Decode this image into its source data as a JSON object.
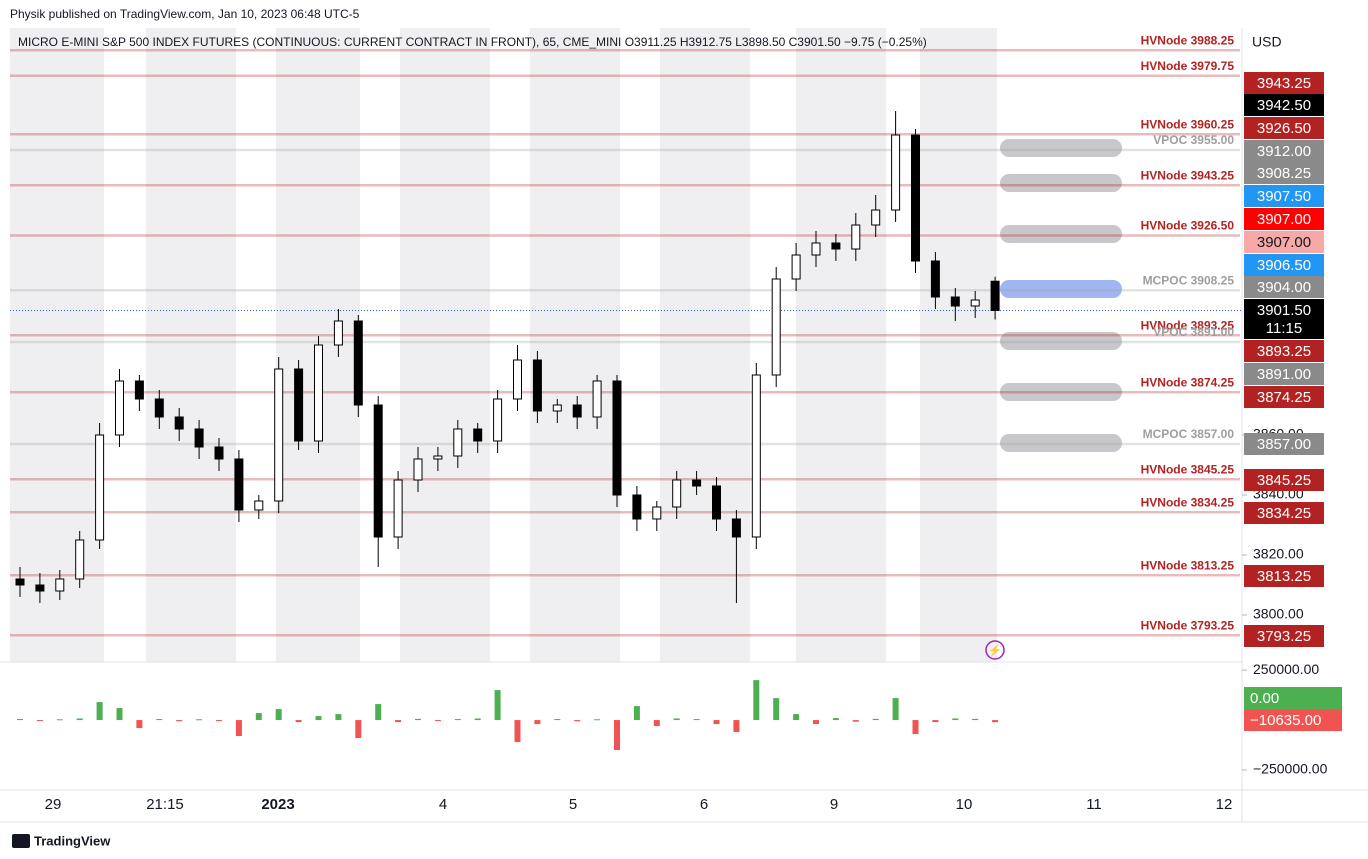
{
  "header": "Physik published on TradingView.com, Jan 10, 2023 06:48 UTC-5",
  "footer": "TradingView",
  "chart_data": [
    {
      "type": "candlestick",
      "title": "MICRO E-MINI S&P 500 INDEX FUTURES (CONTINUOUS: CURRENT CONTRACT IN FRONT), 65, CME_MINI  O3911.25  H3912.75  L3898.50  C3901.50  −9.75 (−0.25%)",
      "currency": "USD",
      "countdown": "11:15",
      "x_labels": [
        "29",
        "21:15",
        "2023",
        "4",
        "5",
        "6",
        "9",
        "10",
        "11",
        "12"
      ],
      "open": [
        3812,
        3810,
        3808,
        3812,
        3825,
        3860,
        3878,
        3872,
        3866,
        3862,
        3856,
        3852,
        3835,
        3838,
        3882,
        3858,
        3890,
        3898,
        3870,
        3826,
        3845,
        3852,
        3853,
        3862,
        3858,
        3872,
        3885,
        3868,
        3870,
        3866,
        3878,
        3840,
        3832,
        3836,
        3845,
        3843,
        3832,
        3826,
        3880,
        3912,
        3920,
        3924,
        3922,
        3930,
        3935,
        3960,
        3918,
        3906,
        3903,
        3911.25
      ],
      "high": [
        3816,
        3814,
        3815,
        3828,
        3864,
        3882,
        3880,
        3875,
        3869,
        3865,
        3859,
        3855,
        3840,
        3886,
        3885,
        3893,
        3902,
        3900,
        3873,
        3848,
        3856,
        3856,
        3865,
        3864,
        3875,
        3890,
        3888,
        3872,
        3873,
        3880,
        3880,
        3843,
        3838,
        3848,
        3848,
        3846,
        3835,
        3884,
        3916,
        3924,
        3928,
        3927,
        3934,
        3940,
        3968,
        3962,
        3921,
        3909,
        3908,
        3912.75
      ],
      "low": [
        3806,
        3804,
        3805,
        3809,
        3822,
        3856,
        3868,
        3862,
        3858,
        3852,
        3848,
        3831,
        3832,
        3834,
        3855,
        3854,
        3886,
        3866,
        3816,
        3822,
        3841,
        3848,
        3849,
        3854,
        3854,
        3868,
        3864,
        3864,
        3862,
        3862,
        3836,
        3828,
        3828,
        3832,
        3840,
        3828,
        3804,
        3822,
        3876,
        3908,
        3916,
        3918,
        3918,
        3926,
        3931,
        3914,
        3902,
        3898,
        3899,
        3898.5
      ],
      "close": [
        3810,
        3808,
        3812,
        3825,
        3860,
        3878,
        3872,
        3866,
        3862,
        3856,
        3852,
        3835,
        3838,
        3882,
        3858,
        3890,
        3898,
        3870,
        3826,
        3845,
        3852,
        3853,
        3862,
        3858,
        3872,
        3885,
        3868,
        3870,
        3866,
        3878,
        3840,
        3832,
        3836,
        3845,
        3843,
        3832,
        3826,
        3880,
        3912,
        3920,
        3924,
        3922,
        3930,
        3935,
        3960,
        3918,
        3906,
        3903,
        3905,
        3901.5
      ],
      "ylim": [
        3784.33,
        3995.67
      ],
      "yticks": [
        {
          "value": 3800,
          "label": "3800.00"
        },
        {
          "value": 3820,
          "label": "3820.00"
        },
        {
          "value": 3840,
          "label": "3840.00"
        },
        {
          "value": 3860,
          "label": "3860.00"
        }
      ],
      "levels": [
        {
          "name": "HVNode 3988.25",
          "value": 3988.25,
          "color": "#b22222"
        },
        {
          "name": "HVNode 3979.75",
          "value": 3979.75,
          "color": "#b22222"
        },
        {
          "name": "HVNode 3960.25",
          "value": 3960.25,
          "color": "#b22222"
        },
        {
          "name": "VPOC 3955.00",
          "value": 3955,
          "color": "#9e9e9e"
        },
        {
          "name": "HVNode 3943.25",
          "value": 3943.25,
          "color": "#b22222"
        },
        {
          "name": "HVNode 3926.50",
          "value": 3926.5,
          "color": "#b22222"
        },
        {
          "name": "MCPOC 3908.25",
          "value": 3908.25,
          "color": "#9e9e9e"
        },
        {
          "name": "HVNode 3893.25",
          "value": 3893.25,
          "color": "#b22222"
        },
        {
          "name": "VPOC 3891.00",
          "value": 3891,
          "color": "#9e9e9e"
        },
        {
          "name": "HVNode 3874.25",
          "value": 3874.25,
          "color": "#b22222"
        },
        {
          "name": "MCPOC 3857.00",
          "value": 3857,
          "color": "#9e9e9e"
        },
        {
          "name": "HVNode 3845.25",
          "value": 3845.25,
          "color": "#b22222"
        },
        {
          "name": "HVNode 3834.25",
          "value": 3834.25,
          "color": "#b22222"
        },
        {
          "name": "HVNode 3813.25",
          "value": 3813.25,
          "color": "#b22222"
        },
        {
          "name": "HVNode 3793.25",
          "value": 3793.25,
          "color": "#b22222"
        }
      ],
      "price_labels": [
        {
          "value": 3943.25,
          "label": "3943.25",
          "color": "#b22222"
        },
        {
          "value": 3942.5,
          "label": "3942.50",
          "color": "#000000"
        },
        {
          "value": 3926.5,
          "label": "3926.50",
          "color": "#b22222"
        },
        {
          "value": 3912,
          "label": "3912.00",
          "color": "#8a8a8a"
        },
        {
          "value": 3908.25,
          "label": "3908.25",
          "color": "#8a8a8a"
        },
        {
          "value": 3907.5,
          "label": "3907.50",
          "color": "#2196f3"
        },
        {
          "value": 3907,
          "label": "3907.00",
          "color": "#ff0000"
        },
        {
          "value": 3907,
          "label": "3907.00",
          "color": "#f7a9a8"
        },
        {
          "value": 3906.5,
          "label": "3906.50",
          "color": "#2196f3"
        },
        {
          "value": 3904,
          "label": "3904.00",
          "color": "#8a8a8a"
        },
        {
          "value": 3901.5,
          "label": "3901.50",
          "color": "#000000"
        },
        {
          "value": 3893.25,
          "label": "3893.25",
          "color": "#b22222"
        },
        {
          "value": 3891,
          "label": "3891.00",
          "color": "#8a8a8a"
        },
        {
          "value": 3874.25,
          "label": "3874.25",
          "color": "#b22222"
        },
        {
          "value": 3857,
          "label": "3857.00",
          "color": "#8a8a8a"
        },
        {
          "value": 3845.25,
          "label": "3845.25",
          "color": "#b22222"
        },
        {
          "value": 3834.25,
          "label": "3834.25",
          "color": "#b22222"
        },
        {
          "value": 3813.25,
          "label": "3813.25",
          "color": "#b22222"
        },
        {
          "value": 3793.25,
          "label": "3793.25",
          "color": "#b22222"
        }
      ],
      "up_color": "#ffffff",
      "down_color": "#000000"
    },
    {
      "type": "bar",
      "values": [
        5000,
        -3000,
        4000,
        8000,
        90000,
        60000,
        -40000,
        5000,
        -6000,
        4000,
        -5000,
        -80000,
        35000,
        55000,
        -10000,
        20000,
        30000,
        -90000,
        80000,
        -10000,
        6000,
        -4000,
        5000,
        8000,
        150000,
        -110000,
        -20000,
        5000,
        -6000,
        4000,
        -150000,
        70000,
        -30000,
        8000,
        5000,
        -20000,
        -60000,
        200000,
        110000,
        30000,
        -20000,
        10000,
        -8000,
        6000,
        110000,
        -70000,
        -10000,
        8000,
        6000,
        -10635
      ],
      "positive_color": "#4caf50",
      "negative_color": "#f05350",
      "ylim": [
        -350000,
        290625
      ],
      "yticks": [
        {
          "value": 250000,
          "label": "250000.00"
        },
        {
          "value": -250000,
          "label": "−250000.00"
        }
      ],
      "price_labels": [
        {
          "value": 0,
          "label": "0.00",
          "color": "#4caf50"
        },
        {
          "value": -10635,
          "label": "−10635.00",
          "color": "#f05350"
        }
      ]
    }
  ]
}
